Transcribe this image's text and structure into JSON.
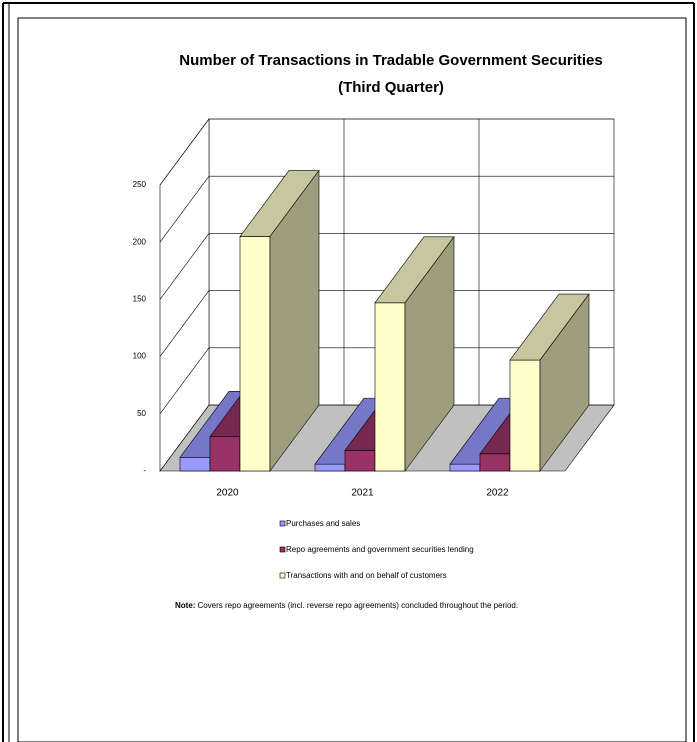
{
  "chart_data": {
    "type": "bar3d",
    "title": "Number of Transactions in Tradable Government Securities",
    "subtitle": "(Third Quarter)",
    "categories": [
      "2020",
      "2021",
      "2022"
    ],
    "series": [
      {
        "name": "Purchases and sales",
        "color": "#9999ff",
        "values": [
          12,
          6,
          6
        ]
      },
      {
        "name": "Repo agreements and government securities lending",
        "color": "#993366",
        "values": [
          30,
          18,
          15
        ]
      },
      {
        "name": "Transactions with and on behalf of customers",
        "color": "#ffffcc",
        "values": [
          205,
          147,
          97
        ]
      }
    ],
    "ylim": [
      0,
      250
    ],
    "yticks": [
      {
        "value": 0,
        "label": "-"
      },
      50,
      100,
      150,
      200,
      250
    ],
    "grid": true,
    "legend": "bottom",
    "note_label": "Note:",
    "note": "Covers repo agreements (incl. reverse repo agreements) concluded throughout the period."
  }
}
